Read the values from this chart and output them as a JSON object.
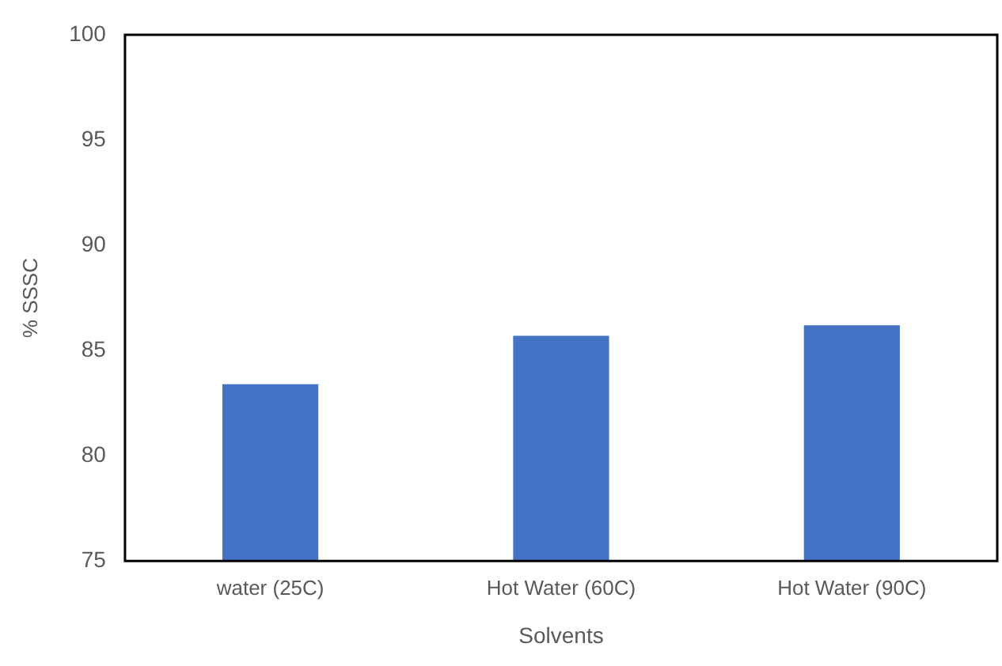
{
  "chart_data": {
    "type": "bar",
    "xlabel": "Solvents",
    "ylabel": "% SSSC",
    "categories": [
      "water (25C)",
      "Hot Water (60C)",
      "Hot Water (90C)"
    ],
    "values": [
      83.4,
      85.7,
      86.2
    ],
    "color": "#4472c4",
    "ylim": [
      75,
      100
    ],
    "yticks": [
      75,
      80,
      85,
      90,
      95,
      100
    ],
    "grid": false,
    "legend": false
  }
}
